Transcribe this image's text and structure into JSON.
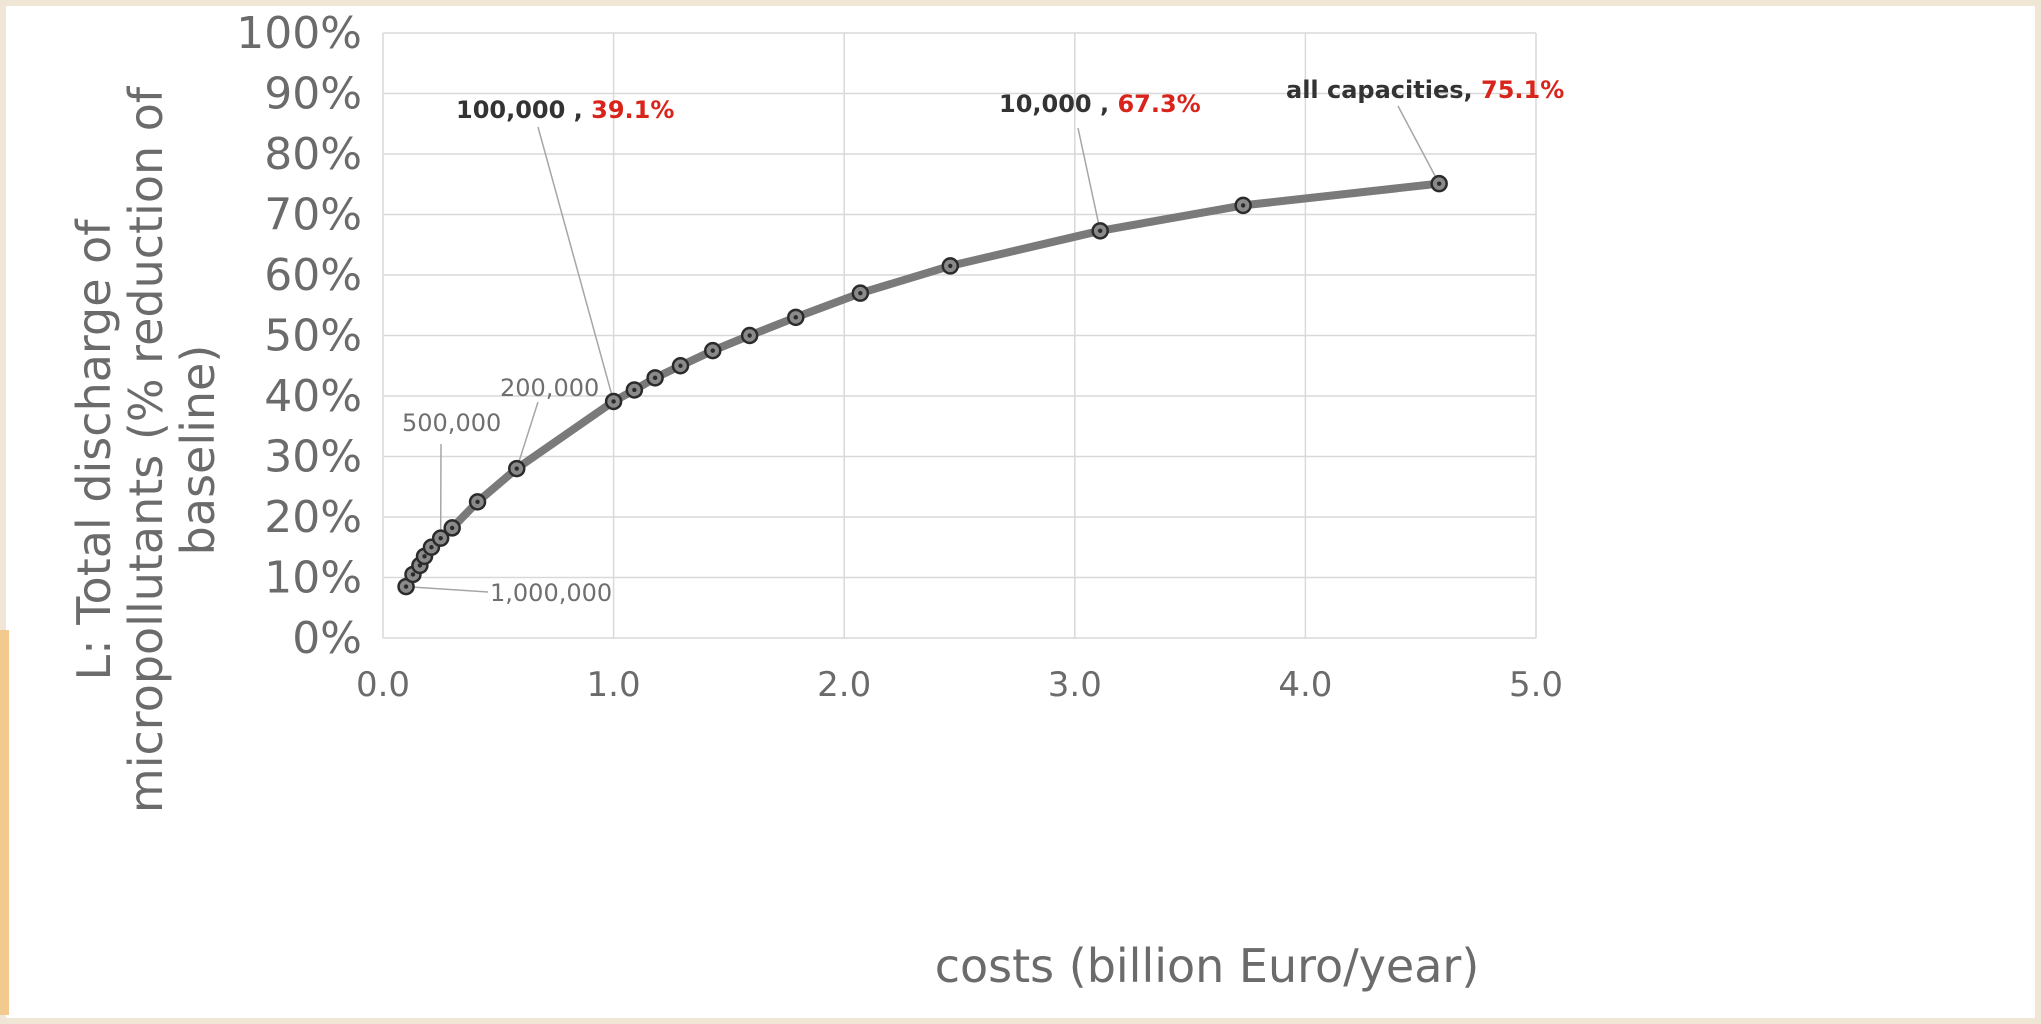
{
  "chart_data": {
    "type": "line",
    "title": "",
    "xlabel": "costs (billion Euro/year)",
    "ylabel_lines": [
      "L: Total discharge of",
      "micropollutants (% reduction of",
      "baseline)"
    ],
    "xlim": [
      0,
      5
    ],
    "ylim": [
      0,
      100
    ],
    "x_ticks": [
      "0.0",
      "1.0",
      "2.0",
      "3.0",
      "4.0",
      "5.0"
    ],
    "x_tick_values": [
      0,
      1,
      2,
      3,
      4,
      5
    ],
    "y_ticks": [
      "0%",
      "10%",
      "20%",
      "30%",
      "40%",
      "50%",
      "60%",
      "70%",
      "80%",
      "90%",
      "100%"
    ],
    "y_tick_values": [
      0,
      10,
      20,
      30,
      40,
      50,
      60,
      70,
      80,
      90,
      100
    ],
    "grid": true,
    "legend": "none",
    "series": [
      {
        "color": "#7a7a7a",
        "marker_color": "#2b2b2b",
        "x": [
          0.1,
          0.13,
          0.16,
          0.18,
          0.21,
          0.25,
          0.3,
          0.41,
          0.58,
          1.0,
          1.09,
          1.18,
          1.29,
          1.43,
          1.59,
          1.79,
          2.07,
          2.46,
          3.11,
          3.73,
          4.58
        ],
        "y": [
          8.5,
          10.5,
          12.0,
          13.5,
          15.0,
          16.5,
          18.2,
          22.5,
          28.0,
          39.1,
          41.0,
          43.0,
          45.0,
          47.5,
          50.0,
          53.0,
          57.0,
          61.5,
          67.3,
          71.5,
          75.1
        ]
      }
    ],
    "annotations": [
      {
        "label": "1,000,000",
        "x": 0.1,
        "y": 8.5,
        "style": "plain"
      },
      {
        "label": "500,000",
        "x": 0.25,
        "y": 16.5,
        "style": "plain"
      },
      {
        "label": "200,000",
        "x": 0.58,
        "y": 28.0,
        "style": "plain"
      },
      {
        "label": "100,000 , ",
        "value": "39.1%",
        "x": 1.0,
        "y": 39.1,
        "style": "bold"
      },
      {
        "label": "10,000 , ",
        "value": "67.3%",
        "x": 3.11,
        "y": 67.3,
        "style": "bold"
      },
      {
        "label": "all capacities, ",
        "value": "75.1%",
        "x": 4.58,
        "y": 75.1,
        "style": "bold"
      }
    ]
  }
}
